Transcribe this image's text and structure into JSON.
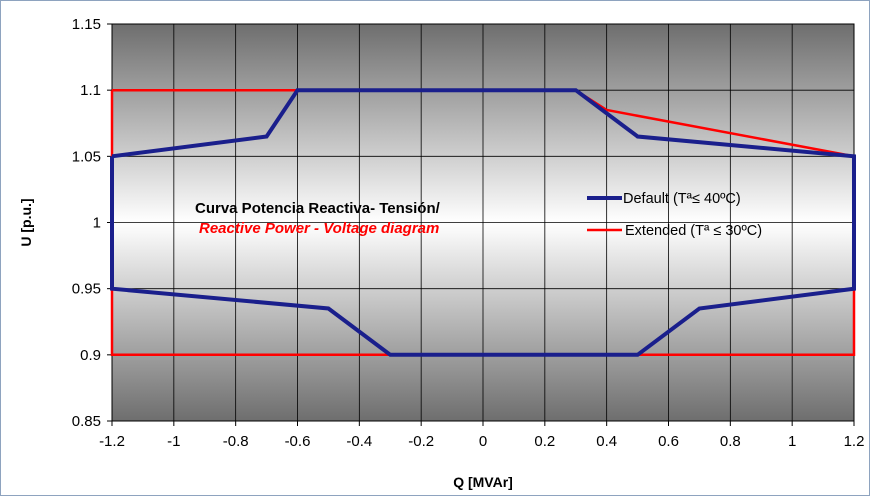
{
  "chart_data": {
    "type": "line",
    "xlabel": "Q [MVAr]",
    "ylabel": "U [p.u.]",
    "xlim": [
      -1.2,
      1.2
    ],
    "ylim": [
      0.85,
      1.15
    ],
    "xticks": [
      -1.2,
      -1,
      -0.8,
      -0.6,
      -0.4,
      -0.2,
      0,
      0.2,
      0.4,
      0.6,
      0.8,
      1,
      1.2
    ],
    "xtick_labels": [
      "-1.2",
      "-1",
      "-0.8",
      "-0.6",
      "-0.4",
      "-0.2",
      "0",
      "0.2",
      "0.4",
      "0.6",
      "0.8",
      "1",
      "1.2"
    ],
    "yticks": [
      0.85,
      0.9,
      0.95,
      1,
      1.05,
      1.1,
      1.15
    ],
    "ytick_labels": [
      "0.85",
      "0.9",
      "0.95",
      "1",
      "1.05",
      "1.1",
      "1.15"
    ],
    "grid": true,
    "legend_position": "center-right",
    "annotation": {
      "line1": "Curva Potencia Reactiva- Tensión/",
      "line2": "Reactive Power - Voltage diagram"
    },
    "series": [
      {
        "name": "Default (Tª≤ 40ºC)",
        "color": "#1a1f8c",
        "x": [
          -1.2,
          -0.7,
          -0.6,
          0.3,
          0.5,
          1.2,
          1.2,
          0.7,
          0.5,
          -0.3,
          -0.5,
          -1.2,
          -1.2
        ],
        "y": [
          1.05,
          1.065,
          1.1,
          1.1,
          1.065,
          1.05,
          0.95,
          0.935,
          0.9,
          0.9,
          0.935,
          0.95,
          1.05
        ]
      },
      {
        "name": "Extended (Tª ≤ 30ºC)",
        "color": "#ff0000",
        "x": [
          -1.2,
          0.3,
          0.4,
          1.2,
          1.2,
          -1.2,
          -1.2
        ],
        "y": [
          1.1,
          1.1,
          1.085,
          1.05,
          0.9,
          0.9,
          1.1
        ]
      }
    ]
  }
}
